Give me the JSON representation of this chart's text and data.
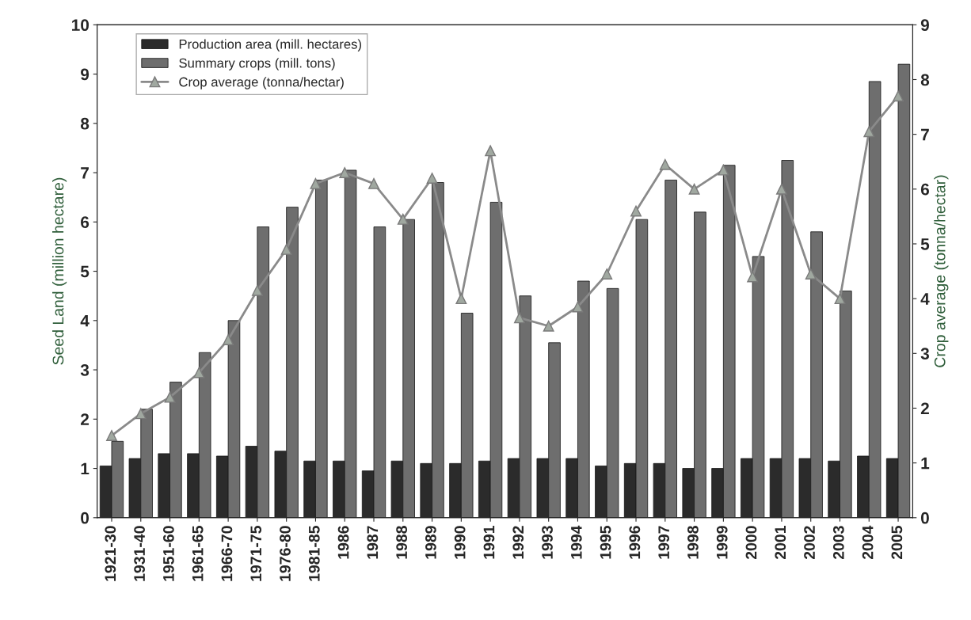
{
  "chart_data": {
    "type": "bar",
    "ylabel": "Seed Land (million hectare)",
    "y2label": "Crop average (tonna/hectar)",
    "categories": [
      "1921-30",
      "1931-40",
      "1951-60",
      "1961-65",
      "1966-70",
      "1971-75",
      "1976-80",
      "1981-85",
      "1986",
      "1987",
      "1988",
      "1989",
      "1990",
      "1991",
      "1992",
      "1993",
      "1994",
      "1995",
      "1996",
      "1997",
      "1998",
      "1999",
      "2000",
      "2001",
      "2002",
      "2003",
      "2004",
      "2005"
    ],
    "series": [
      {
        "name": "Production area (mill. hectares)",
        "color": "#2b2b2b",
        "values": [
          1.05,
          1.2,
          1.3,
          1.3,
          1.25,
          1.45,
          1.35,
          1.15,
          1.15,
          0.95,
          1.15,
          1.1,
          1.1,
          1.15,
          1.2,
          1.2,
          1.2,
          1.05,
          1.1,
          1.1,
          1.0,
          1.0,
          1.2,
          1.2,
          1.2,
          1.15,
          1.25,
          1.2
        ]
      },
      {
        "name": "Summary crops (mill. tons)",
        "color": "#6e6e6e",
        "values": [
          1.55,
          2.2,
          2.75,
          3.35,
          4.0,
          5.9,
          6.3,
          6.85,
          7.05,
          5.9,
          6.05,
          6.8,
          4.15,
          6.4,
          4.5,
          3.55,
          4.8,
          4.65,
          6.05,
          6.85,
          6.2,
          7.15,
          5.3,
          7.25,
          5.8,
          4.6,
          8.85,
          9.2
        ]
      },
      {
        "name": "Crop average (tonna/hectar)",
        "type": "line",
        "axis": "y2",
        "color": "#8a8a8a",
        "marker": "triangle",
        "line_style": "solid",
        "values": [
          1.5,
          1.9,
          2.2,
          2.65,
          3.25,
          4.15,
          4.9,
          6.1,
          6.3,
          6.1,
          5.45,
          6.2,
          4.0,
          6.7,
          3.65,
          3.5,
          3.85,
          4.45,
          5.6,
          6.45,
          6.0,
          6.35,
          4.4,
          6.0,
          4.45,
          4.0,
          7.05,
          7.7
        ]
      }
    ],
    "ylim": [
      0,
      10
    ],
    "yticks": [
      0,
      1,
      2,
      3,
      4,
      5,
      6,
      7,
      8,
      9,
      10
    ],
    "y2lim": [
      0,
      9
    ],
    "y2ticks": [
      0,
      1,
      2,
      3,
      4,
      5,
      6,
      7,
      8,
      9
    ],
    "grid": false,
    "legend": "top left"
  }
}
